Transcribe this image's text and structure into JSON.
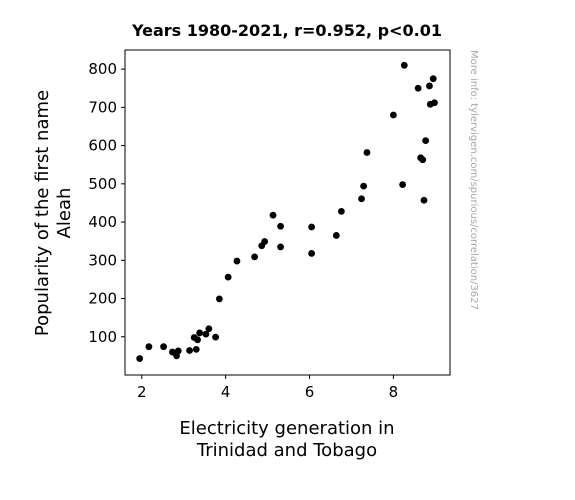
{
  "chart_data": {
    "type": "scatter",
    "title": "Years 1980-2021, r=0.952, p<0.01",
    "xlabel": [
      "Electricity generation in",
      "Trinidad and Tobago"
    ],
    "ylabel": [
      "Popularity of the first name",
      "Aleah"
    ],
    "watermark": "More info: tylervigen.com/spurious/correlation/3627",
    "xlim": [
      1.6,
      9.35
    ],
    "ylim": [
      0,
      850
    ],
    "xticks": [
      2,
      4,
      6,
      8
    ],
    "yticks": [
      100,
      200,
      300,
      400,
      500,
      600,
      700,
      800
    ],
    "grid": false,
    "marker_color": "#000000",
    "points": [
      {
        "x": 1.95,
        "y": 43
      },
      {
        "x": 2.17,
        "y": 74
      },
      {
        "x": 2.52,
        "y": 74
      },
      {
        "x": 2.73,
        "y": 60
      },
      {
        "x": 2.83,
        "y": 50
      },
      {
        "x": 2.87,
        "y": 63
      },
      {
        "x": 3.14,
        "y": 64
      },
      {
        "x": 3.25,
        "y": 98
      },
      {
        "x": 3.3,
        "y": 67
      },
      {
        "x": 3.33,
        "y": 92
      },
      {
        "x": 3.38,
        "y": 110
      },
      {
        "x": 3.53,
        "y": 107
      },
      {
        "x": 3.6,
        "y": 121
      },
      {
        "x": 3.76,
        "y": 99
      },
      {
        "x": 3.85,
        "y": 199
      },
      {
        "x": 4.06,
        "y": 256
      },
      {
        "x": 4.27,
        "y": 298
      },
      {
        "x": 4.69,
        "y": 309
      },
      {
        "x": 4.86,
        "y": 338
      },
      {
        "x": 4.93,
        "y": 349
      },
      {
        "x": 5.13,
        "y": 418
      },
      {
        "x": 5.31,
        "y": 389
      },
      {
        "x": 5.31,
        "y": 335
      },
      {
        "x": 6.05,
        "y": 387
      },
      {
        "x": 6.05,
        "y": 318
      },
      {
        "x": 6.64,
        "y": 365
      },
      {
        "x": 6.76,
        "y": 428
      },
      {
        "x": 7.24,
        "y": 461
      },
      {
        "x": 7.29,
        "y": 494
      },
      {
        "x": 7.37,
        "y": 582
      },
      {
        "x": 8.0,
        "y": 680
      },
      {
        "x": 8.22,
        "y": 498
      },
      {
        "x": 8.26,
        "y": 810
      },
      {
        "x": 8.59,
        "y": 750
      },
      {
        "x": 8.65,
        "y": 568
      },
      {
        "x": 8.7,
        "y": 563
      },
      {
        "x": 8.73,
        "y": 457
      },
      {
        "x": 8.77,
        "y": 613
      },
      {
        "x": 8.86,
        "y": 756
      },
      {
        "x": 8.88,
        "y": 708
      },
      {
        "x": 8.95,
        "y": 775
      },
      {
        "x": 8.98,
        "y": 712
      }
    ]
  }
}
